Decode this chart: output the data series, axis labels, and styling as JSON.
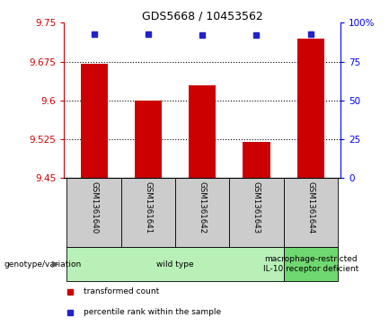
{
  "title": "GDS5668 / 10453562",
  "samples": [
    "GSM1361640",
    "GSM1361641",
    "GSM1361642",
    "GSM1361643",
    "GSM1361644"
  ],
  "transformed_counts": [
    9.67,
    9.6,
    9.63,
    9.52,
    9.72
  ],
  "percentile_ranks": [
    93,
    93,
    92,
    92,
    93
  ],
  "ylim_left": [
    9.45,
    9.75
  ],
  "ylim_right": [
    0,
    100
  ],
  "yticks_left": [
    9.45,
    9.525,
    9.6,
    9.675,
    9.75
  ],
  "ytick_labels_left": [
    "9.45",
    "9.525",
    "9.6",
    "9.675",
    "9.75"
  ],
  "yticks_right": [
    0,
    25,
    50,
    75,
    100
  ],
  "ytick_labels_right": [
    "0",
    "25",
    "50",
    "75",
    "100%"
  ],
  "hlines": [
    9.525,
    9.6,
    9.675
  ],
  "bar_color": "#cc0000",
  "dot_color": "#2222cc",
  "bar_width": 0.5,
  "genotype_groups": [
    {
      "label": "wild type",
      "samples": [
        0,
        1,
        2,
        3
      ],
      "color": "#b8f0b8"
    },
    {
      "label": "macrophage-restricted\nIL-10 receptor deficient",
      "samples": [
        4
      ],
      "color": "#70d870"
    }
  ],
  "sample_box_color": "#cccccc",
  "legend_items": [
    {
      "color": "#cc0000",
      "label": "transformed count"
    },
    {
      "color": "#2222cc",
      "label": "percentile rank within the sample"
    }
  ],
  "genotype_label": "genotype/variation"
}
